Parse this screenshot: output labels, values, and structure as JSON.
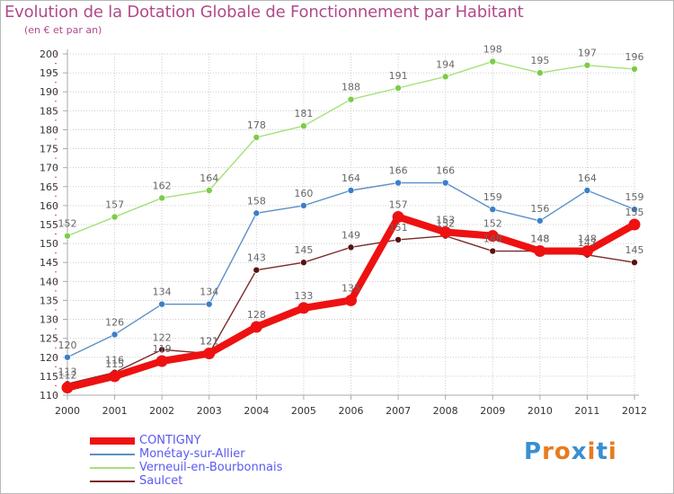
{
  "title": "Evolution de la Dotation Globale de Fonctionnement par Habitant",
  "subtitle": "(en € et par an)",
  "logo": [
    "P",
    "r",
    "o",
    "x",
    "i",
    "t",
    "i"
  ],
  "colors": {
    "title": "#b04a8a",
    "axis": "#aaaaaa",
    "grid": "#cccccc",
    "tick": "#333333",
    "label": "#666666",
    "legend_text": "#5a5af0",
    "logo": [
      "#3a8fd0",
      "#e87b1e",
      "#e87b1e",
      "#3a8fd0",
      "#e87b1e",
      "#3a8fd0",
      "#e87b1e"
    ]
  },
  "chart_data": {
    "type": "line",
    "title": "Evolution de la Dotation Globale de Fonctionnement par Habitant",
    "ylabel": "(en € et par an)",
    "xlabel": "",
    "x": [
      "2000",
      "2001",
      "2002",
      "2003",
      "2004",
      "2005",
      "2006",
      "2007",
      "2008",
      "2009",
      "2010",
      "2011",
      "2012"
    ],
    "ylim": [
      110,
      200
    ],
    "yticks": [
      110,
      115,
      120,
      125,
      130,
      135,
      140,
      145,
      150,
      155,
      160,
      165,
      170,
      175,
      180,
      185,
      190,
      195,
      200
    ],
    "grid": true,
    "legend_position": "bottom-left",
    "series": [
      {
        "name": "CONTIGNY",
        "color": "#ee1111",
        "marker": "#ee1111",
        "emphasis": true,
        "values": [
          112,
          115,
          119,
          121,
          128,
          133,
          135,
          157,
          153,
          152,
          148,
          148,
          155
        ],
        "labels": [
          "112",
          "115",
          "119",
          "121",
          "128",
          "133",
          "135",
          "157",
          "153",
          "152",
          "148",
          "148",
          "155"
        ]
      },
      {
        "name": "Monétay-sur-Allier",
        "color": "#5b8fc6",
        "marker": "#3a7fc8",
        "values": [
          120,
          126,
          134,
          134,
          158,
          160,
          164,
          166,
          166,
          159,
          156,
          164,
          159
        ],
        "labels": [
          "120",
          "126",
          "134",
          "134",
          "158",
          "160",
          "164",
          "166",
          "166",
          "159",
          "156",
          "164",
          "159"
        ]
      },
      {
        "name": "Verneuil-en-Bourbonnais",
        "color": "#a6e07a",
        "marker": "#7ccc4a",
        "values": [
          152,
          157,
          162,
          164,
          178,
          181,
          188,
          191,
          194,
          198,
          195,
          197,
          196
        ],
        "labels": [
          "152",
          "157",
          "162",
          "164",
          "178",
          "181",
          "188",
          "191",
          "194",
          "198",
          "195",
          "197",
          "196"
        ]
      },
      {
        "name": "Saulcet",
        "color": "#7a2a2a",
        "marker": "#5a1010",
        "values": [
          113,
          116,
          122,
          121,
          143,
          145,
          149,
          151,
          152,
          148,
          148,
          147,
          145
        ],
        "labels": [
          "113",
          "116",
          "122",
          "121",
          "143",
          "145",
          "149",
          "151",
          "152",
          "148",
          "148",
          "147",
          "145"
        ]
      }
    ]
  }
}
